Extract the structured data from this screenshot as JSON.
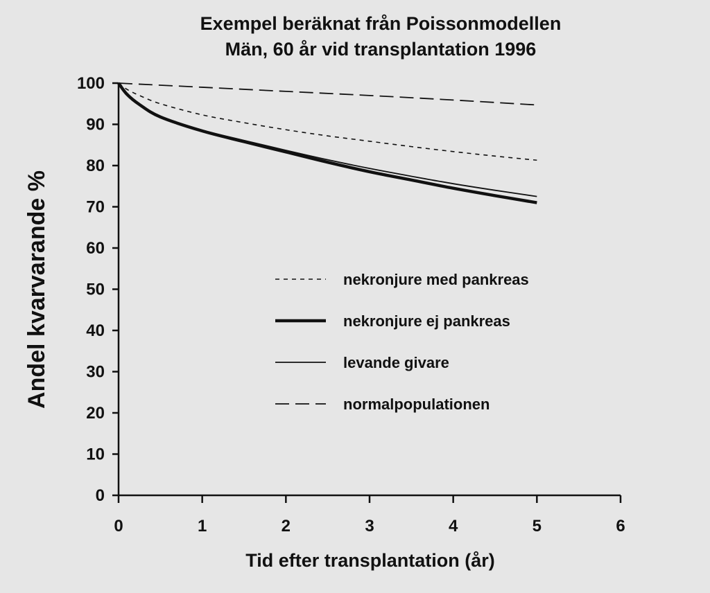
{
  "chart_data": {
    "type": "line",
    "title": "Exempel beräknat från Poissonmodellen",
    "subtitle": "Män, 60 år vid transplantation 1996",
    "xlabel": "Tid efter transplantation (år)",
    "ylabel": "Andel kvarvarande %",
    "xlim": [
      0,
      6
    ],
    "ylim": [
      0,
      100
    ],
    "xticks": [
      0,
      1,
      2,
      3,
      4,
      5,
      6
    ],
    "yticks": [
      0,
      10,
      20,
      30,
      40,
      50,
      60,
      70,
      80,
      90,
      100
    ],
    "grid": false,
    "legend_position": "center-right",
    "series": [
      {
        "name": "nekronjure med pankreas",
        "style": "dotted",
        "x": [
          0,
          0.1,
          0.25,
          0.5,
          1,
          1.5,
          2,
          2.5,
          3,
          3.5,
          4,
          4.5,
          5
        ],
        "y": [
          100,
          98.5,
          97,
          95,
          92.3,
          90.4,
          88.7,
          87.2,
          85.9,
          84.6,
          83.4,
          82.3,
          81.3
        ]
      },
      {
        "name": "nekronjure ej pankreas",
        "style": "thick",
        "x": [
          0,
          0.1,
          0.25,
          0.5,
          1,
          1.5,
          2,
          2.5,
          3,
          3.5,
          4,
          4.5,
          5
        ],
        "y": [
          100,
          97.3,
          94.8,
          91.8,
          88.4,
          85.8,
          83.3,
          80.8,
          78.5,
          76.5,
          74.5,
          72.7,
          71
        ]
      },
      {
        "name": "levande givare",
        "style": "thin",
        "x": [
          0,
          0.1,
          0.25,
          0.5,
          1,
          1.5,
          2,
          2.5,
          3,
          3.5,
          4,
          4.5,
          5
        ],
        "y": [
          100,
          97.3,
          94.8,
          91.8,
          88.6,
          86.1,
          83.7,
          81.4,
          79.3,
          77.4,
          75.6,
          74,
          72.5
        ]
      },
      {
        "name": "normalpopulationen",
        "style": "dashed",
        "x": [
          0,
          1,
          2,
          3,
          4,
          5
        ],
        "y": [
          100,
          99,
          98,
          97,
          95.9,
          94.7
        ]
      }
    ]
  }
}
